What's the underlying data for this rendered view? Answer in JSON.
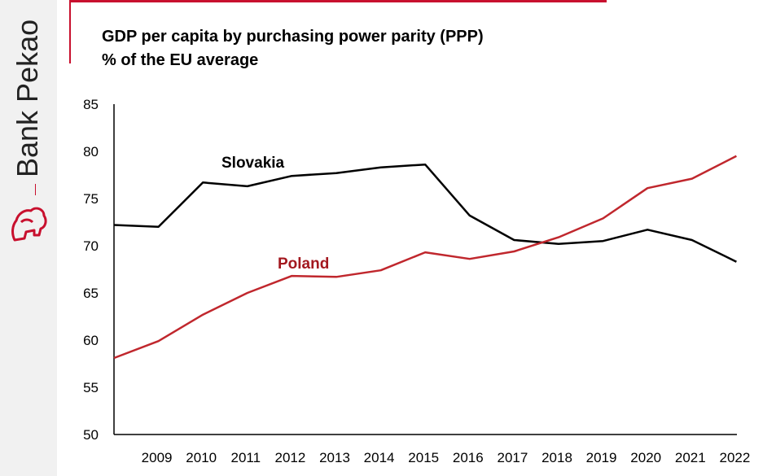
{
  "branding": {
    "name": "Bank Pekao",
    "logo_icon": "bison-icon",
    "accent_color": "#c8102e"
  },
  "chart_data": {
    "type": "line",
    "title": "GDP per capita by purchasing power parity (PPP)",
    "subtitle": "% of the EU average",
    "xlabel": "",
    "ylabel": "",
    "x": [
      "",
      "2009",
      "2010",
      "2011",
      "2012",
      "2013",
      "2014",
      "2015",
      "2016",
      "2017",
      "2018",
      "2019",
      "2020",
      "2021",
      "2022"
    ],
    "categories": [
      "2009",
      "2010",
      "2011",
      "2012",
      "2013",
      "2014",
      "2015",
      "2016",
      "2017",
      "2018",
      "2019",
      "2020",
      "2021",
      "2022"
    ],
    "yticks": [
      "85",
      "80",
      "75",
      "70",
      "65",
      "60",
      "55",
      "50"
    ],
    "ylim": [
      50,
      85
    ],
    "grid": false,
    "series": [
      {
        "name": "Slovakia",
        "color": "#000000",
        "values": [
          72.2,
          72.0,
          76.7,
          76.3,
          77.4,
          77.7,
          78.3,
          78.6,
          73.2,
          70.6,
          70.2,
          70.5,
          71.7,
          70.6,
          68.3
        ]
      },
      {
        "name": "Poland",
        "color": "#c0272d",
        "values": [
          58.1,
          59.9,
          62.7,
          65.0,
          66.8,
          66.7,
          67.4,
          69.3,
          68.6,
          69.4,
          70.9,
          72.9,
          76.1,
          77.1,
          79.5
        ]
      }
    ]
  }
}
